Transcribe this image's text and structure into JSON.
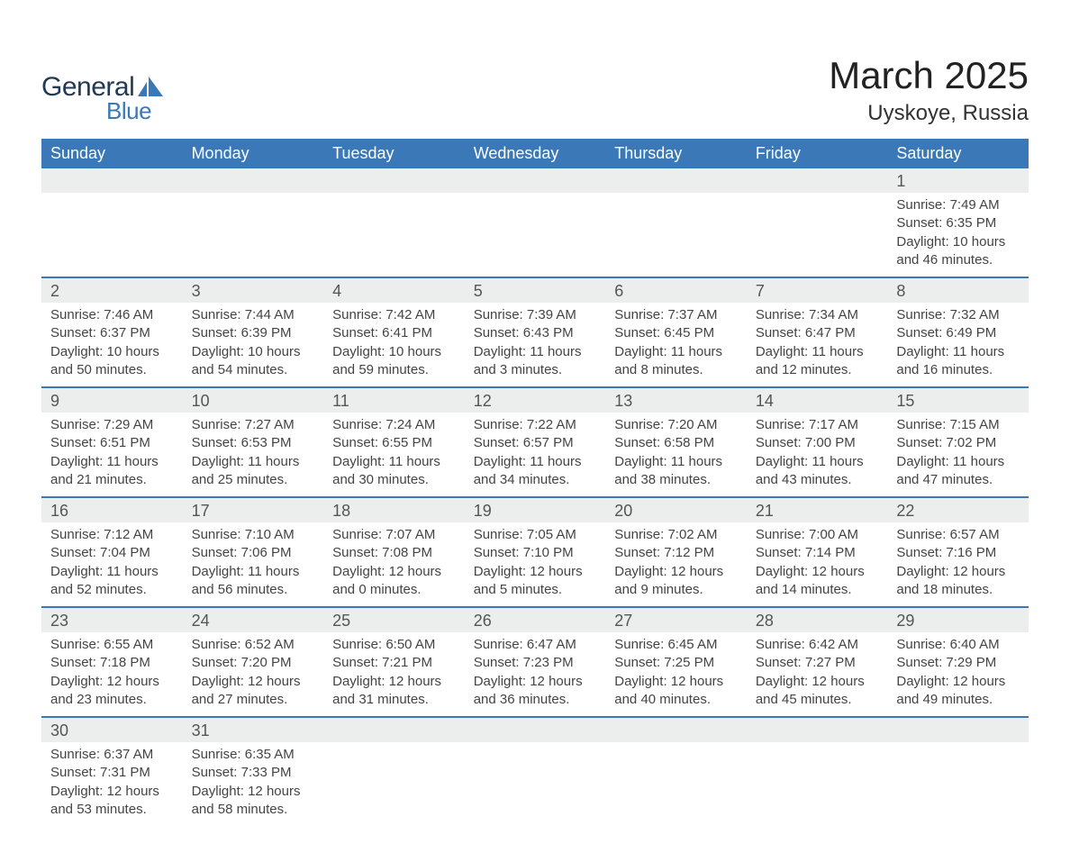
{
  "logo": {
    "text_general": "General",
    "text_blue": "Blue",
    "color_general": "#223a54",
    "color_blue": "#3a78b7"
  },
  "title": "March 2025",
  "location": "Uyskoye, Russia",
  "header_bg": "#3a78b7",
  "header_fg": "#ffffff",
  "daynum_bg": "#eceeee",
  "border_color": "#3a78b7",
  "text_color": "#444444",
  "daynames": [
    "Sunday",
    "Monday",
    "Tuesday",
    "Wednesday",
    "Thursday",
    "Friday",
    "Saturday"
  ],
  "weeks": [
    [
      null,
      null,
      null,
      null,
      null,
      null,
      {
        "n": "1",
        "sr": "Sunrise: 7:49 AM",
        "ss": "Sunset: 6:35 PM",
        "dl": "Daylight: 10 hours and 46 minutes."
      }
    ],
    [
      {
        "n": "2",
        "sr": "Sunrise: 7:46 AM",
        "ss": "Sunset: 6:37 PM",
        "dl": "Daylight: 10 hours and 50 minutes."
      },
      {
        "n": "3",
        "sr": "Sunrise: 7:44 AM",
        "ss": "Sunset: 6:39 PM",
        "dl": "Daylight: 10 hours and 54 minutes."
      },
      {
        "n": "4",
        "sr": "Sunrise: 7:42 AM",
        "ss": "Sunset: 6:41 PM",
        "dl": "Daylight: 10 hours and 59 minutes."
      },
      {
        "n": "5",
        "sr": "Sunrise: 7:39 AM",
        "ss": "Sunset: 6:43 PM",
        "dl": "Daylight: 11 hours and 3 minutes."
      },
      {
        "n": "6",
        "sr": "Sunrise: 7:37 AM",
        "ss": "Sunset: 6:45 PM",
        "dl": "Daylight: 11 hours and 8 minutes."
      },
      {
        "n": "7",
        "sr": "Sunrise: 7:34 AM",
        "ss": "Sunset: 6:47 PM",
        "dl": "Daylight: 11 hours and 12 minutes."
      },
      {
        "n": "8",
        "sr": "Sunrise: 7:32 AM",
        "ss": "Sunset: 6:49 PM",
        "dl": "Daylight: 11 hours and 16 minutes."
      }
    ],
    [
      {
        "n": "9",
        "sr": "Sunrise: 7:29 AM",
        "ss": "Sunset: 6:51 PM",
        "dl": "Daylight: 11 hours and 21 minutes."
      },
      {
        "n": "10",
        "sr": "Sunrise: 7:27 AM",
        "ss": "Sunset: 6:53 PM",
        "dl": "Daylight: 11 hours and 25 minutes."
      },
      {
        "n": "11",
        "sr": "Sunrise: 7:24 AM",
        "ss": "Sunset: 6:55 PM",
        "dl": "Daylight: 11 hours and 30 minutes."
      },
      {
        "n": "12",
        "sr": "Sunrise: 7:22 AM",
        "ss": "Sunset: 6:57 PM",
        "dl": "Daylight: 11 hours and 34 minutes."
      },
      {
        "n": "13",
        "sr": "Sunrise: 7:20 AM",
        "ss": "Sunset: 6:58 PM",
        "dl": "Daylight: 11 hours and 38 minutes."
      },
      {
        "n": "14",
        "sr": "Sunrise: 7:17 AM",
        "ss": "Sunset: 7:00 PM",
        "dl": "Daylight: 11 hours and 43 minutes."
      },
      {
        "n": "15",
        "sr": "Sunrise: 7:15 AM",
        "ss": "Sunset: 7:02 PM",
        "dl": "Daylight: 11 hours and 47 minutes."
      }
    ],
    [
      {
        "n": "16",
        "sr": "Sunrise: 7:12 AM",
        "ss": "Sunset: 7:04 PM",
        "dl": "Daylight: 11 hours and 52 minutes."
      },
      {
        "n": "17",
        "sr": "Sunrise: 7:10 AM",
        "ss": "Sunset: 7:06 PM",
        "dl": "Daylight: 11 hours and 56 minutes."
      },
      {
        "n": "18",
        "sr": "Sunrise: 7:07 AM",
        "ss": "Sunset: 7:08 PM",
        "dl": "Daylight: 12 hours and 0 minutes."
      },
      {
        "n": "19",
        "sr": "Sunrise: 7:05 AM",
        "ss": "Sunset: 7:10 PM",
        "dl": "Daylight: 12 hours and 5 minutes."
      },
      {
        "n": "20",
        "sr": "Sunrise: 7:02 AM",
        "ss": "Sunset: 7:12 PM",
        "dl": "Daylight: 12 hours and 9 minutes."
      },
      {
        "n": "21",
        "sr": "Sunrise: 7:00 AM",
        "ss": "Sunset: 7:14 PM",
        "dl": "Daylight: 12 hours and 14 minutes."
      },
      {
        "n": "22",
        "sr": "Sunrise: 6:57 AM",
        "ss": "Sunset: 7:16 PM",
        "dl": "Daylight: 12 hours and 18 minutes."
      }
    ],
    [
      {
        "n": "23",
        "sr": "Sunrise: 6:55 AM",
        "ss": "Sunset: 7:18 PM",
        "dl": "Daylight: 12 hours and 23 minutes."
      },
      {
        "n": "24",
        "sr": "Sunrise: 6:52 AM",
        "ss": "Sunset: 7:20 PM",
        "dl": "Daylight: 12 hours and 27 minutes."
      },
      {
        "n": "25",
        "sr": "Sunrise: 6:50 AM",
        "ss": "Sunset: 7:21 PM",
        "dl": "Daylight: 12 hours and 31 minutes."
      },
      {
        "n": "26",
        "sr": "Sunrise: 6:47 AM",
        "ss": "Sunset: 7:23 PM",
        "dl": "Daylight: 12 hours and 36 minutes."
      },
      {
        "n": "27",
        "sr": "Sunrise: 6:45 AM",
        "ss": "Sunset: 7:25 PM",
        "dl": "Daylight: 12 hours and 40 minutes."
      },
      {
        "n": "28",
        "sr": "Sunrise: 6:42 AM",
        "ss": "Sunset: 7:27 PM",
        "dl": "Daylight: 12 hours and 45 minutes."
      },
      {
        "n": "29",
        "sr": "Sunrise: 6:40 AM",
        "ss": "Sunset: 7:29 PM",
        "dl": "Daylight: 12 hours and 49 minutes."
      }
    ],
    [
      {
        "n": "30",
        "sr": "Sunrise: 6:37 AM",
        "ss": "Sunset: 7:31 PM",
        "dl": "Daylight: 12 hours and 53 minutes."
      },
      {
        "n": "31",
        "sr": "Sunrise: 6:35 AM",
        "ss": "Sunset: 7:33 PM",
        "dl": "Daylight: 12 hours and 58 minutes."
      },
      null,
      null,
      null,
      null,
      null
    ]
  ]
}
